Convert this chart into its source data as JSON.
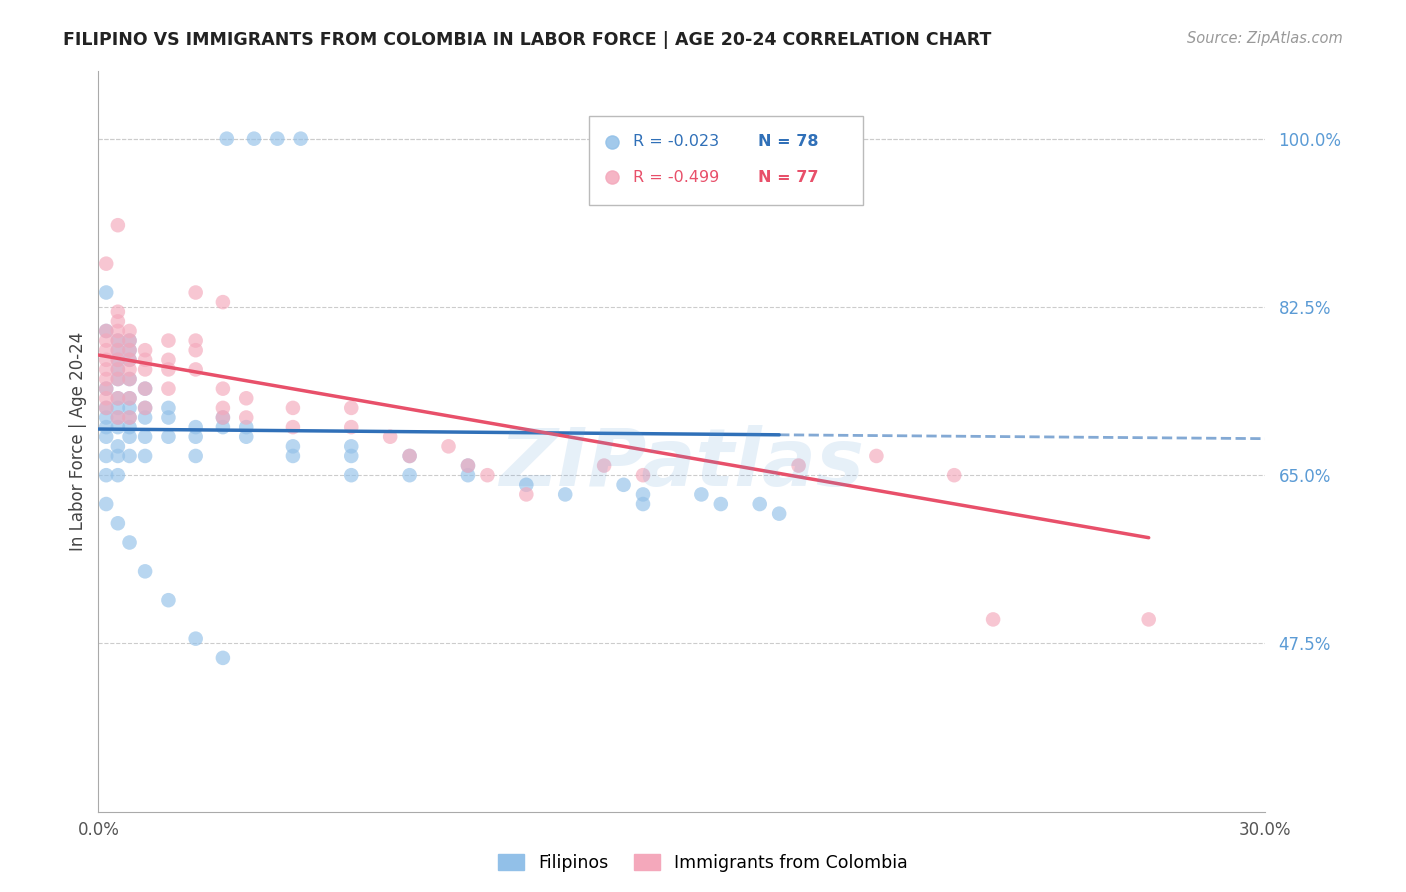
{
  "title": "FILIPINO VS IMMIGRANTS FROM COLOMBIA IN LABOR FORCE | AGE 20-24 CORRELATION CHART",
  "source": "Source: ZipAtlas.com",
  "ylabel": "In Labor Force | Age 20-24",
  "xlim": [
    0.0,
    0.3
  ],
  "ylim": [
    0.3,
    1.07
  ],
  "xtick_pos": [
    0.0,
    0.05,
    0.1,
    0.15,
    0.2,
    0.25,
    0.3
  ],
  "xtick_labels": [
    "0.0%",
    "",
    "",
    "",
    "",
    "",
    "30.0%"
  ],
  "ytick_positions": [
    0.475,
    0.65,
    0.825,
    1.0
  ],
  "ytick_labels": [
    "47.5%",
    "65.0%",
    "82.5%",
    "100.0%"
  ],
  "blue_color": "#92C0E8",
  "pink_color": "#F4A8BB",
  "blue_line_color": "#3070B8",
  "pink_line_color": "#E8506A",
  "legend_R_blue": "R = -0.023",
  "legend_N_blue": "N = 78",
  "legend_R_pink": "R = -0.499",
  "legend_N_pink": "N = 77",
  "watermark": "ZIPatlas",
  "blue_line": {
    "x0": 0.0,
    "x1": 0.175,
    "y0": 0.698,
    "y1": 0.692,
    "dash_x1": 0.3,
    "dash_y1": 0.688
  },
  "pink_line": {
    "x0": 0.0,
    "x1": 0.27,
    "y0": 0.775,
    "y1": 0.585
  },
  "background_color": "#ffffff",
  "grid_color": "#cccccc",
  "title_color": "#222222",
  "right_label_color": "#5b9bd5",
  "marker_size": 110,
  "blue_scatter_x": [
    0.033,
    0.04,
    0.046,
    0.052,
    0.002,
    0.002,
    0.002,
    0.002,
    0.002,
    0.002,
    0.002,
    0.002,
    0.005,
    0.005,
    0.005,
    0.005,
    0.005,
    0.005,
    0.005,
    0.005,
    0.005,
    0.005,
    0.005,
    0.005,
    0.008,
    0.008,
    0.008,
    0.008,
    0.008,
    0.008,
    0.008,
    0.008,
    0.008,
    0.008,
    0.012,
    0.012,
    0.012,
    0.012,
    0.012,
    0.018,
    0.018,
    0.018,
    0.025,
    0.025,
    0.025,
    0.032,
    0.032,
    0.038,
    0.038,
    0.05,
    0.05,
    0.065,
    0.065,
    0.065,
    0.08,
    0.08,
    0.095,
    0.095,
    0.11,
    0.12,
    0.135,
    0.14,
    0.14,
    0.155,
    0.16,
    0.17,
    0.175,
    0.002,
    0.002,
    0.005,
    0.008,
    0.012,
    0.018,
    0.025,
    0.032
  ],
  "blue_scatter_y": [
    1.0,
    1.0,
    1.0,
    1.0,
    0.74,
    0.72,
    0.71,
    0.7,
    0.69,
    0.67,
    0.65,
    0.62,
    0.79,
    0.78,
    0.77,
    0.76,
    0.75,
    0.73,
    0.72,
    0.71,
    0.7,
    0.68,
    0.67,
    0.65,
    0.79,
    0.78,
    0.77,
    0.75,
    0.73,
    0.72,
    0.71,
    0.7,
    0.69,
    0.67,
    0.74,
    0.72,
    0.71,
    0.69,
    0.67,
    0.72,
    0.71,
    0.69,
    0.7,
    0.69,
    0.67,
    0.71,
    0.7,
    0.7,
    0.69,
    0.68,
    0.67,
    0.68,
    0.67,
    0.65,
    0.67,
    0.65,
    0.66,
    0.65,
    0.64,
    0.63,
    0.64,
    0.63,
    0.62,
    0.63,
    0.62,
    0.62,
    0.61,
    0.8,
    0.84,
    0.6,
    0.58,
    0.55,
    0.52,
    0.48,
    0.46
  ],
  "pink_scatter_x": [
    0.002,
    0.002,
    0.002,
    0.002,
    0.002,
    0.002,
    0.002,
    0.002,
    0.002,
    0.005,
    0.005,
    0.005,
    0.005,
    0.005,
    0.005,
    0.005,
    0.005,
    0.005,
    0.005,
    0.008,
    0.008,
    0.008,
    0.008,
    0.008,
    0.008,
    0.008,
    0.008,
    0.012,
    0.012,
    0.012,
    0.012,
    0.012,
    0.018,
    0.018,
    0.018,
    0.018,
    0.025,
    0.025,
    0.025,
    0.032,
    0.032,
    0.032,
    0.038,
    0.038,
    0.05,
    0.05,
    0.065,
    0.065,
    0.075,
    0.08,
    0.09,
    0.095,
    0.1,
    0.11,
    0.13,
    0.14,
    0.18,
    0.2,
    0.22,
    0.23,
    0.27,
    0.025,
    0.032,
    0.005,
    0.002
  ],
  "pink_scatter_y": [
    0.8,
    0.79,
    0.78,
    0.77,
    0.76,
    0.75,
    0.74,
    0.73,
    0.72,
    0.82,
    0.81,
    0.8,
    0.79,
    0.78,
    0.77,
    0.76,
    0.75,
    0.73,
    0.71,
    0.8,
    0.79,
    0.78,
    0.77,
    0.76,
    0.75,
    0.73,
    0.71,
    0.78,
    0.77,
    0.76,
    0.74,
    0.72,
    0.79,
    0.77,
    0.76,
    0.74,
    0.79,
    0.78,
    0.76,
    0.74,
    0.72,
    0.71,
    0.73,
    0.71,
    0.72,
    0.7,
    0.72,
    0.7,
    0.69,
    0.67,
    0.68,
    0.66,
    0.65,
    0.63,
    0.66,
    0.65,
    0.66,
    0.67,
    0.65,
    0.5,
    0.5,
    0.84,
    0.83,
    0.91,
    0.87
  ]
}
